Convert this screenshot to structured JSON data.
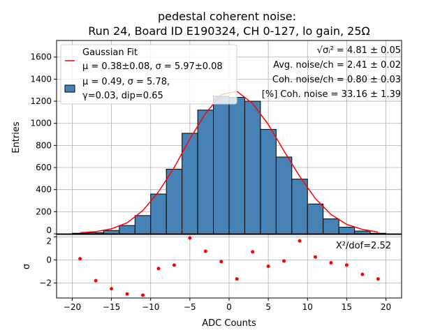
{
  "chart_data": [
    {
      "type": "bar",
      "title": "pedestal coherent noise:",
      "subtitle": "Run 24, Board ID E190324, CH 0-127, lo gain, 25Ω",
      "ylabel": "Entries",
      "xlim": [
        -22,
        22
      ],
      "ylim": [
        0,
        1750
      ],
      "yticks": [
        0,
        200,
        400,
        600,
        800,
        1000,
        1200,
        1400,
        1600
      ],
      "grid": true,
      "bin_edges": [
        -20,
        -18,
        -16,
        -14,
        -12,
        -10,
        -8,
        -6,
        -4,
        -2,
        0,
        2,
        4,
        6,
        8,
        10,
        12,
        14,
        16,
        18,
        20
      ],
      "values": [
        5,
        10,
        30,
        75,
        165,
        360,
        585,
        910,
        1120,
        1245,
        1235,
        1200,
        945,
        695,
        495,
        270,
        135,
        60,
        25,
        5
      ],
      "fit": {
        "x": [
          -19,
          -17,
          -15,
          -13,
          -11,
          -9,
          -7,
          -5,
          -3,
          -1,
          1,
          3,
          5,
          7,
          9,
          11,
          13,
          15,
          17,
          19
        ],
        "y": [
          10,
          20,
          45,
          100,
          210,
          380,
          600,
          860,
          1090,
          1260,
          1290,
          1180,
          990,
          750,
          520,
          320,
          175,
          85,
          40,
          15
        ]
      },
      "colors": {
        "bars": "#4682b4",
        "fit": "#ff0000"
      },
      "legend": {
        "position": "top-left",
        "fit_label": "Gaussian Fit",
        "fit_line2": "μ = 0.38±0.08, σ = 5.97±0.08",
        "hist_line1": "μ = 0.49, σ = 5.78,",
        "hist_line2": "γ=0.03, dip=0.65"
      },
      "annotations": [
        "√σᵢ² = 4.81 ± 0.05",
        "Avg. noise/ch = 2.41 ± 0.02",
        "Coh. noise/ch = 0.80 ± 0.03",
        "[%] Coh. noise = 33.16  ± 1.39"
      ]
    },
    {
      "type": "scatter",
      "xlabel": "ADC Counts",
      "ylabel": "σ",
      "xlim": [
        -22,
        22
      ],
      "ylim": [
        -3.3,
        2.2
      ],
      "xticks": [
        -20,
        -15,
        -10,
        -5,
        0,
        5,
        10,
        15,
        20
      ],
      "yticks": [
        -2,
        0,
        2
      ],
      "grid": true,
      "x": [
        -19,
        -17,
        -15,
        -13,
        -11,
        -9,
        -7,
        -5,
        -3,
        -1,
        1,
        3,
        5,
        7,
        9,
        11,
        13,
        15,
        17,
        19
      ],
      "y": [
        0.1,
        -1.8,
        -2.5,
        -2.95,
        -3.05,
        -0.75,
        -0.45,
        1.9,
        0.75,
        -0.15,
        -1.65,
        0.7,
        -0.55,
        -0.1,
        1.65,
        0.25,
        -0.25,
        -0.45,
        -1.25,
        -1.65
      ],
      "annotation": "X²/dof=2.52",
      "color": "#ff0000"
    }
  ]
}
